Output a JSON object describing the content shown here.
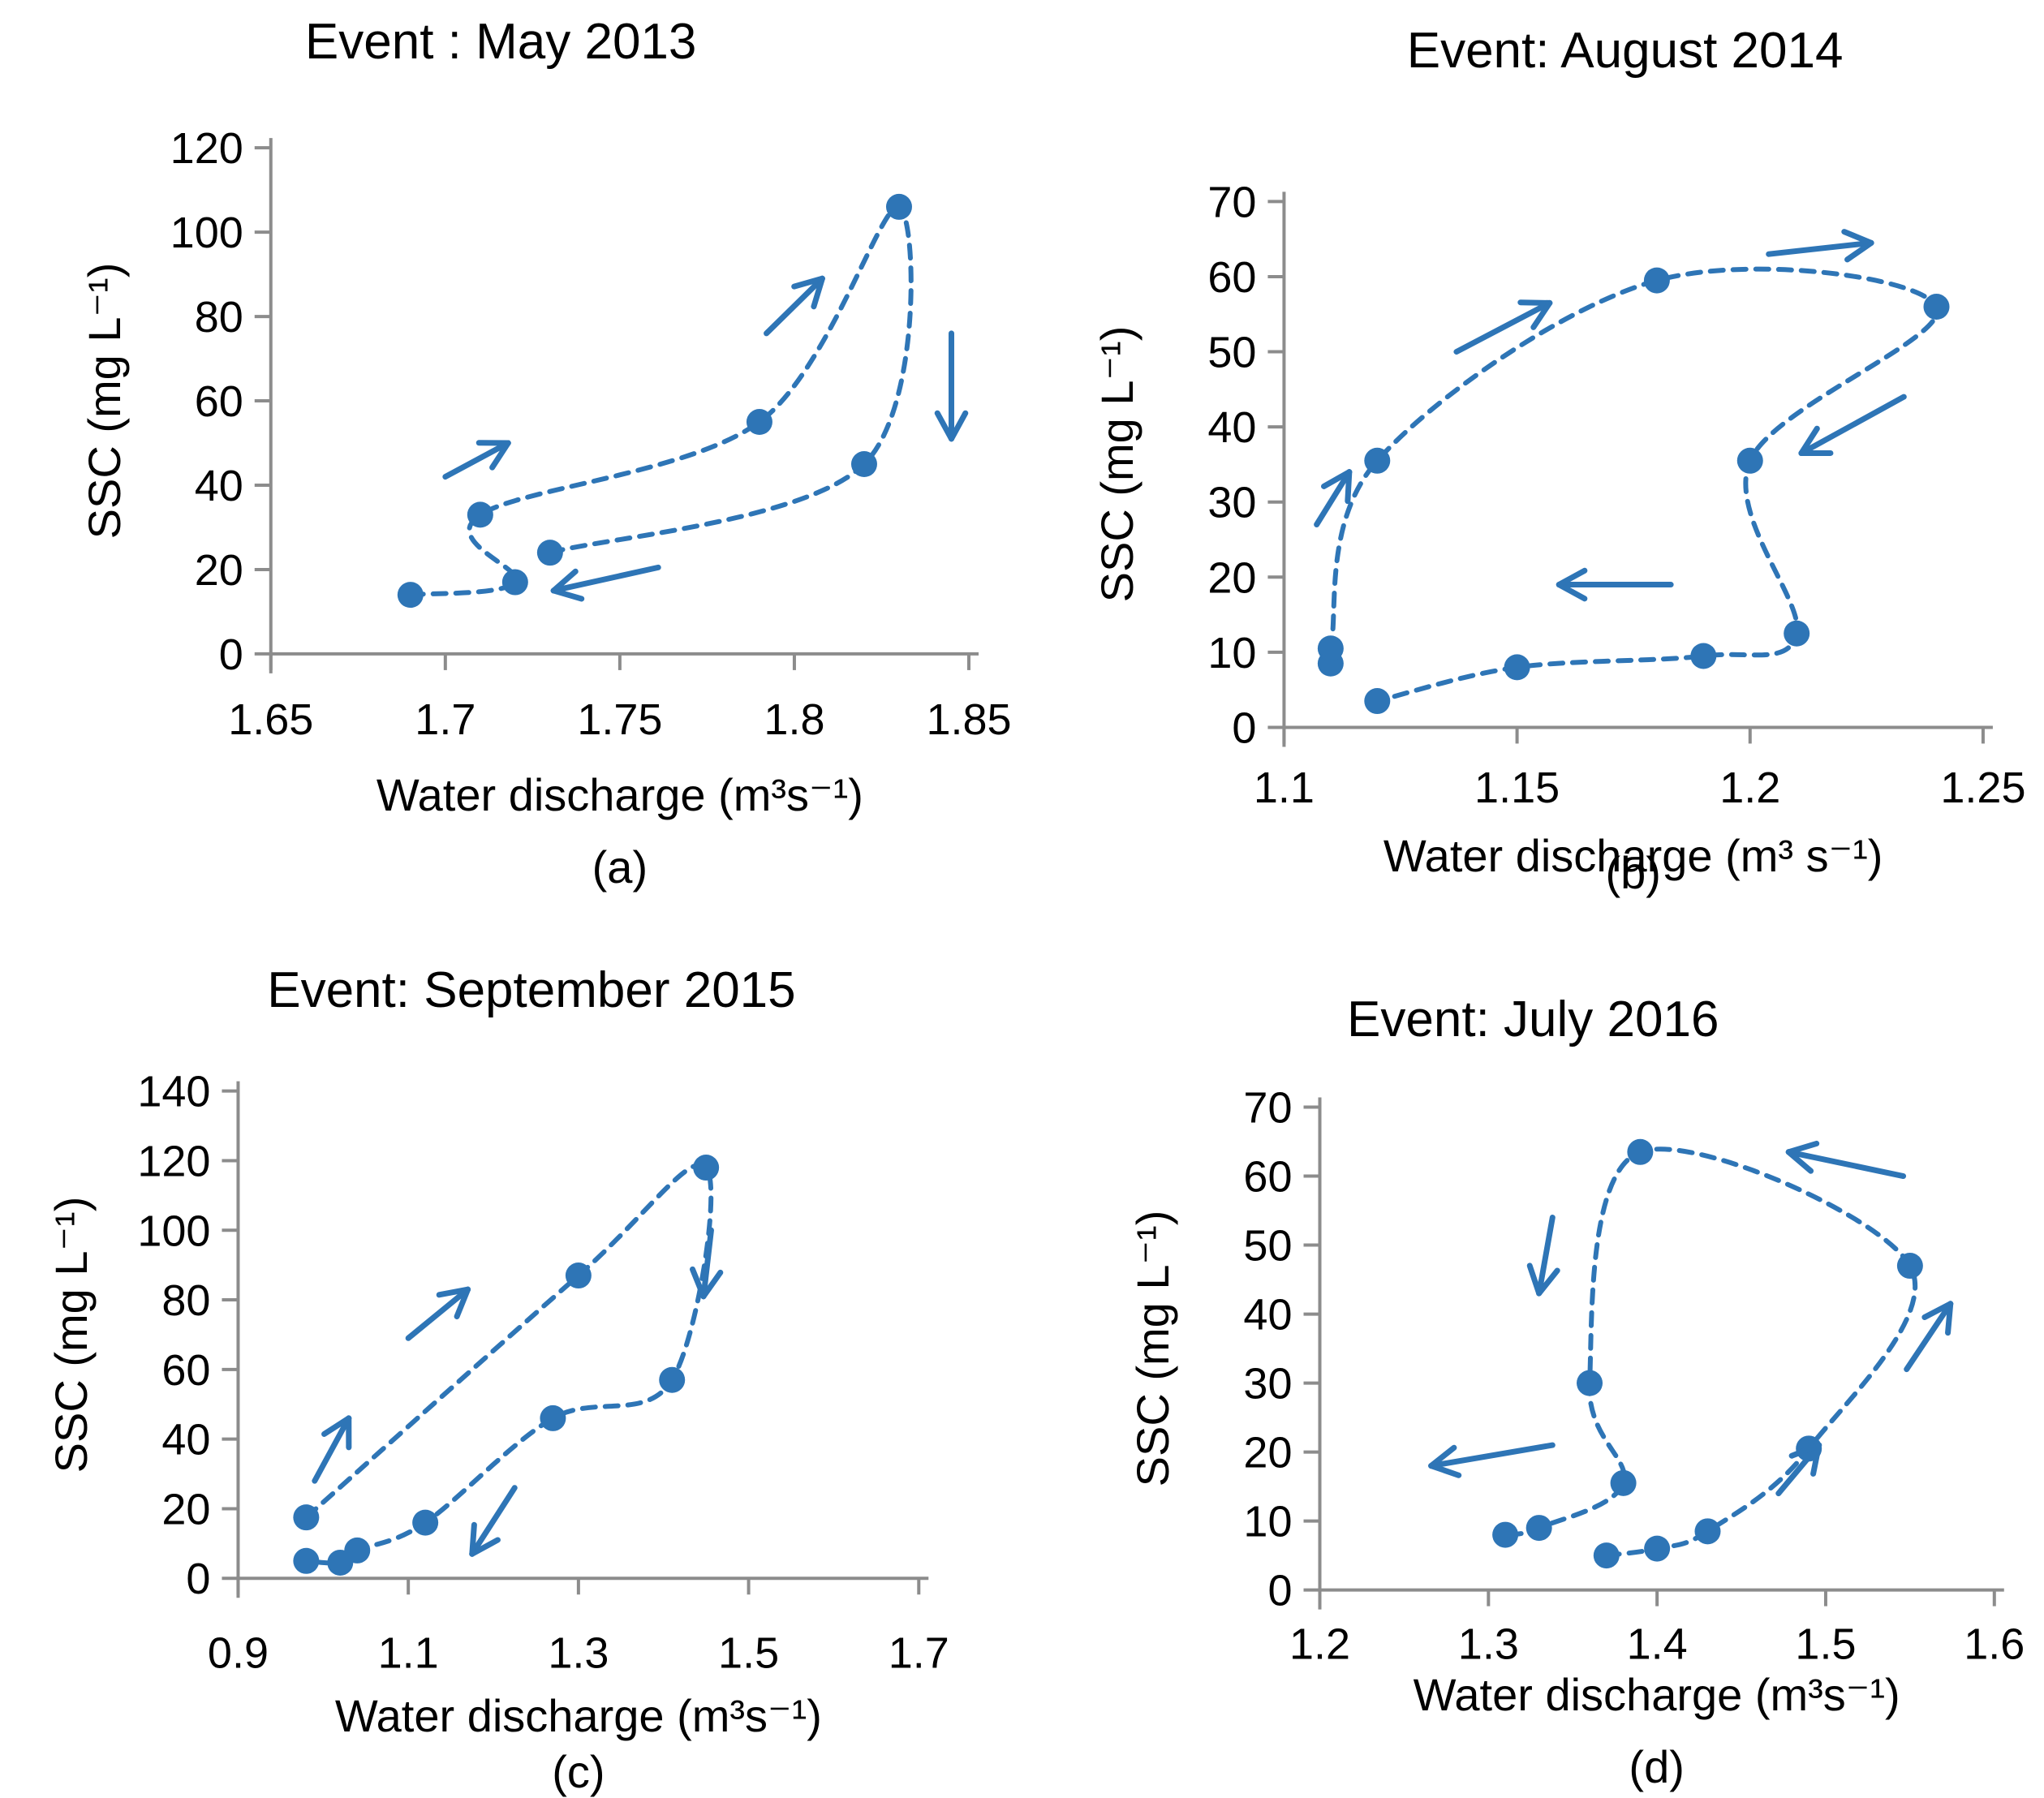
{
  "figure": {
    "background": "#ffffff",
    "accent_color": "#2E75B6",
    "axis_color": "#8C8C8C",
    "text_color": "#000000"
  },
  "chart_data": [
    {
      "type": "scatter",
      "title": "Event : May 2013",
      "xlabel": "Water discharge (m³s⁻¹)",
      "ylabel": "SSC (mg L⁻¹)",
      "caption": "(a)",
      "xlim": [
        1.65,
        1.85
      ],
      "ylim": [
        0,
        120
      ],
      "xtick_values": [
        1.65,
        1.7,
        1.75,
        1.8,
        1.85
      ],
      "xtick_labels": [
        "1.65",
        "1.7",
        "1.75",
        "1.8",
        "1.85"
      ],
      "ytick_values": [
        0,
        20,
        40,
        60,
        80,
        100,
        120
      ],
      "ytick_labels": [
        "0",
        "20",
        "40",
        "60",
        "80",
        "100",
        "120"
      ],
      "line_style": "dashed",
      "loop_direction": "clockwise",
      "points": [
        [
          1.69,
          14
        ],
        [
          1.72,
          17
        ],
        [
          1.71,
          33
        ],
        [
          1.79,
          55
        ],
        [
          1.83,
          106
        ],
        [
          1.82,
          45
        ],
        [
          1.73,
          24
        ]
      ],
      "arrows": [
        [
          1.7,
          42,
          1.718,
          50
        ],
        [
          1.792,
          76,
          1.808,
          89
        ],
        [
          1.845,
          76,
          1.845,
          51
        ],
        [
          1.761,
          20.5,
          1.731,
          15
        ]
      ]
    },
    {
      "type": "scatter",
      "title": "Event: August 2014",
      "xlabel": "Water discharge (m³ s⁻¹)",
      "ylabel": "SSC (mg L⁻¹)",
      "caption": "(b)",
      "xlim": [
        1.1,
        1.25
      ],
      "ylim": [
        0,
        70
      ],
      "xtick_values": [
        1.1,
        1.15,
        1.2,
        1.25
      ],
      "xtick_labels": [
        "1.1",
        "1.15",
        "1.2",
        "1.25"
      ],
      "ytick_values": [
        0,
        10,
        20,
        30,
        40,
        50,
        60,
        70
      ],
      "ytick_labels": [
        "0",
        "10",
        "20",
        "30",
        "40",
        "50",
        "60",
        "70"
      ],
      "line_style": "dashed",
      "loop_direction": "counterclockwise",
      "points": [
        [
          1.11,
          8.5
        ],
        [
          1.11,
          10.5
        ],
        [
          1.12,
          35.5
        ],
        [
          1.18,
          59.5
        ],
        [
          1.24,
          56
        ],
        [
          1.2,
          35.5
        ],
        [
          1.21,
          12.5
        ],
        [
          1.19,
          9.5
        ],
        [
          1.15,
          8
        ],
        [
          1.12,
          3.5
        ]
      ],
      "arrows": [
        [
          1.107,
          27,
          1.114,
          34
        ],
        [
          1.137,
          50,
          1.157,
          56.5
        ],
        [
          1.204,
          63,
          1.226,
          64.5
        ],
        [
          1.233,
          44,
          1.211,
          36.5
        ],
        [
          1.183,
          19,
          1.159,
          19
        ]
      ]
    },
    {
      "type": "scatter",
      "title": "Event: September 2015",
      "xlabel": "Water discharge (m³s⁻¹)",
      "ylabel": "SSC (mg L⁻¹)",
      "caption": "(c)",
      "xlim": [
        0.9,
        1.7
      ],
      "ylim": [
        0,
        140
      ],
      "xtick_values": [
        0.9,
        1.1,
        1.3,
        1.5,
        1.7
      ],
      "xtick_labels": [
        "0.9",
        "1.1",
        "1.3",
        "1.5",
        "1.7"
      ],
      "ytick_values": [
        0,
        20,
        40,
        60,
        80,
        100,
        120,
        140
      ],
      "ytick_labels": [
        "0",
        "20",
        "40",
        "60",
        "80",
        "100",
        "120",
        "140"
      ],
      "line_style": "dashed",
      "loop_direction": "clockwise",
      "points": [
        [
          0.98,
          17.5
        ],
        [
          1.3,
          87
        ],
        [
          1.45,
          118
        ],
        [
          1.41,
          57
        ],
        [
          1.27,
          46
        ],
        [
          1.12,
          16
        ],
        [
          1.04,
          8
        ],
        [
          1.02,
          4.5
        ],
        [
          0.98,
          5
        ]
      ],
      "arrows": [
        [
          0.99,
          28,
          1.03,
          46
        ],
        [
          1.1,
          69,
          1.17,
          83
        ],
        [
          1.456,
          100,
          1.447,
          81
        ],
        [
          1.225,
          26,
          1.175,
          7
        ]
      ]
    },
    {
      "type": "scatter",
      "title": "Event: July 2016",
      "xlabel": "Water discharge (m³s⁻¹)",
      "ylabel": "SSC (mg L⁻¹)",
      "caption": "(d)",
      "xlim": [
        1.2,
        1.6
      ],
      "ylim": [
        0,
        70
      ],
      "xtick_values": [
        1.2,
        1.3,
        1.4,
        1.5,
        1.6
      ],
      "xtick_labels": [
        "1.2",
        "1.3",
        "1.4",
        "1.5",
        "1.6"
      ],
      "ytick_values": [
        0,
        10,
        20,
        30,
        40,
        50,
        60,
        70
      ],
      "ytick_labels": [
        "0",
        "10",
        "20",
        "30",
        "40",
        "50",
        "60",
        "70"
      ],
      "line_style": "dashed",
      "loop_direction": "counterclockwise",
      "points": [
        [
          1.37,
          5
        ],
        [
          1.4,
          6
        ],
        [
          1.43,
          8.5
        ],
        [
          1.49,
          20.5
        ],
        [
          1.55,
          47
        ],
        [
          1.39,
          63.5
        ],
        [
          1.36,
          30
        ],
        [
          1.38,
          15.5
        ],
        [
          1.33,
          9
        ],
        [
          1.31,
          8
        ]
      ],
      "arrows": [
        [
          1.472,
          14,
          1.496,
          21
        ],
        [
          1.548,
          32,
          1.574,
          41.5
        ],
        [
          1.546,
          60,
          1.478,
          63.5
        ],
        [
          1.338,
          54,
          1.33,
          43
        ],
        [
          1.338,
          21,
          1.266,
          18
        ]
      ]
    }
  ]
}
